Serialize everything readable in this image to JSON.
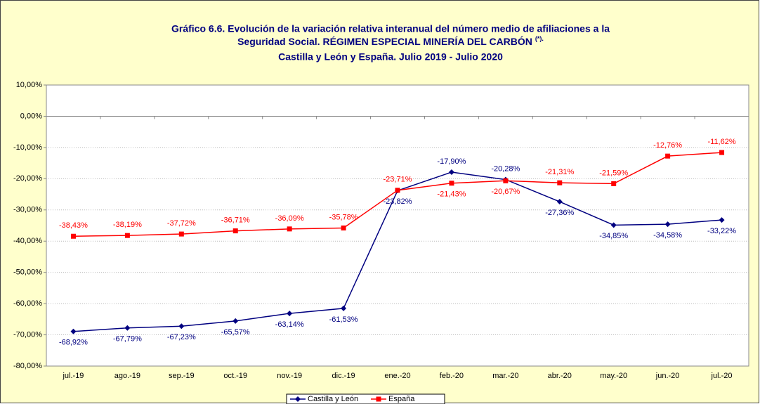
{
  "chart_data": {
    "type": "line",
    "title": [
      "Gráfico 6.6. Evolución de la variación relativa interanual del número medio de  afiliaciones a la",
      "Seguridad Social. RÉGIMEN ESPECIAL MINERÍA DEL CARBÓN",
      "Castilla y León y España. Julio 2019 - Julio 2020"
    ],
    "title_note": "(*).",
    "categories": [
      "jul.-19",
      "ago.-19",
      "sep.-19",
      "oct.-19",
      "nov.-19",
      "dic.-19",
      "ene.-20",
      "feb.-20",
      "mar.-20",
      "abr.-20",
      "may.-20",
      "jun.-20",
      "jul.-20"
    ],
    "series": [
      {
        "name": "Castilla y León",
        "color": "#000080",
        "marker": "diamond",
        "values": [
          -68.92,
          -67.79,
          -67.23,
          -65.57,
          -63.14,
          -61.53,
          -23.82,
          -17.9,
          -20.28,
          -27.36,
          -34.85,
          -34.58,
          -33.22
        ],
        "value_labels": [
          "-68,92%",
          "-67,79%",
          "-67,23%",
          "-65,57%",
          "-63,14%",
          "-61,53%",
          "-23,82%",
          "-17,90%",
          "-20,28%",
          "-27,36%",
          "-34,85%",
          "-34,58%",
          "-33,22%"
        ]
      },
      {
        "name": "España",
        "color": "#ff0000",
        "marker": "square",
        "values": [
          -38.43,
          -38.19,
          -37.72,
          -36.71,
          -36.09,
          -35.78,
          -23.71,
          -21.43,
          -20.67,
          -21.31,
          -21.59,
          -12.76,
          -11.62
        ],
        "value_labels": [
          "-38,43%",
          "-38,19%",
          "-37,72%",
          "-36,71%",
          "-36,09%",
          "-35,78%",
          "-23,71%",
          "-21,43%",
          "-20,67%",
          "-21,31%",
          "-21,59%",
          "-12,76%",
          "-11,62%"
        ]
      }
    ],
    "ylim": [
      -80,
      10
    ],
    "yticks": [
      {
        "value": -80,
        "label": "-80,00%"
      },
      {
        "value": -70,
        "label": "-70,00%"
      },
      {
        "value": -60,
        "label": "-60,00%"
      },
      {
        "value": -50,
        "label": "-50,00%"
      },
      {
        "value": -40,
        "label": "-40,00%"
      },
      {
        "value": -30,
        "label": "-30,00%"
      },
      {
        "value": -20,
        "label": "-20,00%"
      },
      {
        "value": -10,
        "label": "-10,00%"
      },
      {
        "value": 0,
        "label": "0,00%"
      },
      {
        "value": 10,
        "label": "10,00%"
      }
    ],
    "grid": true,
    "legend": "bottom"
  }
}
